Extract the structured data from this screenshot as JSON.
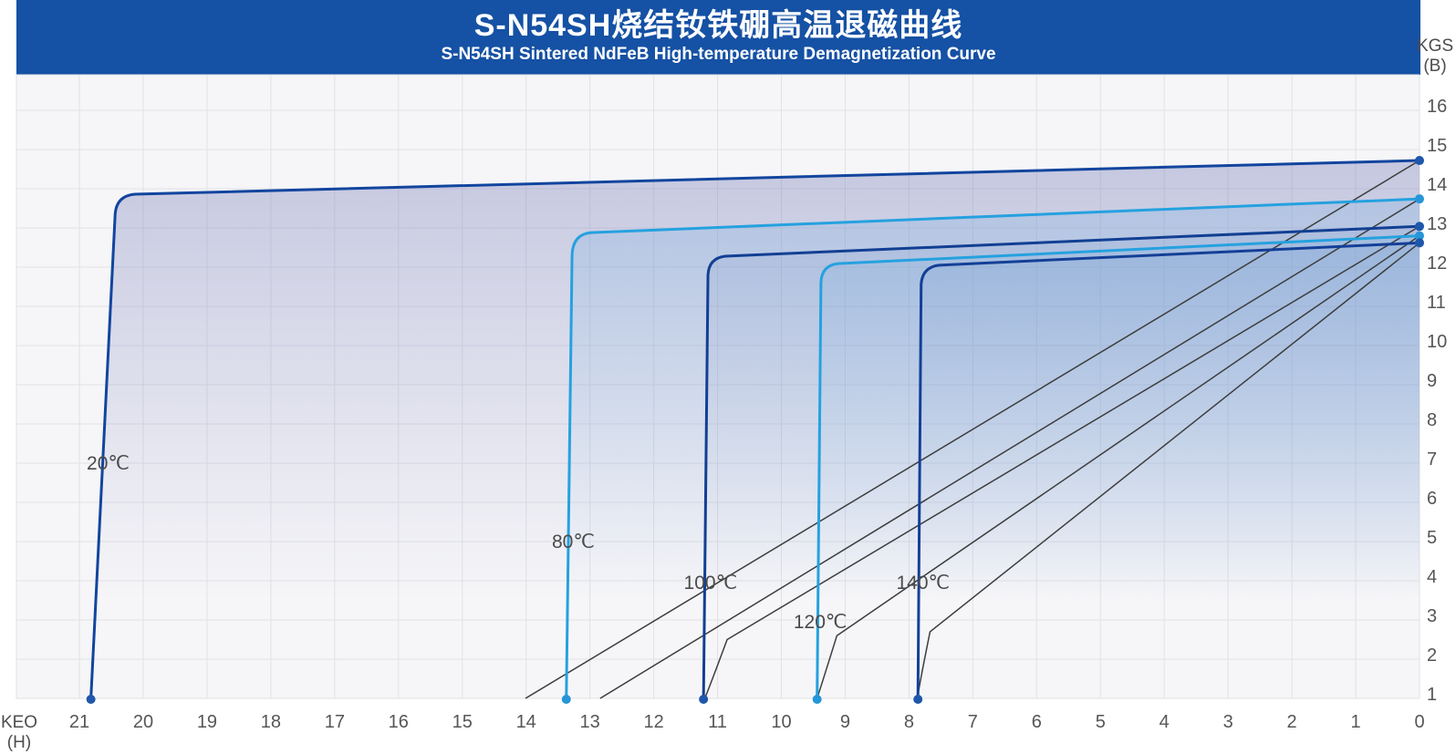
{
  "header": {
    "title_cn": "S-N54SH烧结钕铁硼高温退磁曲线",
    "title_en": "S-N54SH Sintered NdFeB High-temperature Demagnetization Curve",
    "background_color": "#1551a4"
  },
  "chart_data": {
    "type": "line",
    "title": "S-N54SH烧结钕铁硼高温退磁曲线",
    "subtitle": "S-N54SH Sintered NdFeB High-temperature Demagnetization Curve",
    "grid": true,
    "legend_position": "none",
    "x_axis": {
      "unit": "KEO",
      "symbol": "(H)",
      "direction": "reversed",
      "range": [
        22,
        0
      ],
      "ticks": [
        21,
        20,
        19,
        18,
        17,
        16,
        15,
        14,
        13,
        12,
        11,
        10,
        9,
        8,
        7,
        6,
        5,
        4,
        3,
        2,
        1,
        0
      ]
    },
    "y_axis": {
      "unit": "KGS",
      "symbol": "(B)",
      "range": [
        1,
        16.9
      ],
      "ticks": [
        16,
        15,
        14,
        13,
        12,
        11,
        10,
        9,
        8,
        7,
        6,
        5,
        4,
        3,
        2,
        1
      ]
    },
    "colors": {
      "grid": "#e2e2e6",
      "plot_bg": "#f6f6f8",
      "normal_line": "#3d3d3d",
      "tick_text": "#565656",
      "label_text": "#4a4a4a"
    },
    "series": [
      {
        "name": "20℃",
        "id": "20c",
        "color": "#12459e",
        "dot_color": "#1e57ab",
        "fill_rgb": "112,118,182",
        "fill_alpha": 0.36,
        "intrinsic": {
          "hcj": 20.82,
          "vtop": [
            20.44,
            13.35
          ],
          "ctrl": [
            20.42,
            13.82
          ],
          "flat": [
            20.13,
            13.86
          ],
          "br": 14.72
        },
        "normal": {
          "end": [
            14.01,
            1
          ]
        },
        "label": {
          "h": 20.55,
          "b": 7.0
        }
      },
      {
        "name": "80℃",
        "id": "80c",
        "color": "#25a1df",
        "dot_color": "#2596d8",
        "fill_rgb": "105,172,226",
        "fill_alpha": 0.24,
        "intrinsic": {
          "hcj": 13.37,
          "vtop": [
            13.28,
            12.3
          ],
          "ctrl": [
            13.27,
            12.84
          ],
          "flat": [
            12.98,
            12.88
          ],
          "br": 13.74
        },
        "normal": {
          "end": [
            12.84,
            1
          ]
        },
        "label": {
          "h": 13.26,
          "b": 5.0
        }
      },
      {
        "name": "100℃",
        "id": "100c",
        "color": "#123f93",
        "dot_color": "#1e57ab",
        "fill_rgb": "100,125,185",
        "fill_alpha": 0.12,
        "intrinsic": {
          "hcj": 11.22,
          "vtop": [
            11.15,
            11.79
          ],
          "ctrl": [
            11.14,
            12.23
          ],
          "flat": [
            10.88,
            12.28
          ],
          "br": 13.04
        },
        "normal": {
          "bend": [
            10.85,
            2.5
          ],
          "ctrl": [
            11.1,
            1.4
          ],
          "end": [
            11.2,
            1
          ]
        },
        "label": {
          "h": 11.11,
          "b": 3.95
        }
      },
      {
        "name": "120℃",
        "id": "120c",
        "color": "#25a1df",
        "dot_color": "#2596d8",
        "fill_rgb": "105,172,226",
        "fill_alpha": 0.16,
        "intrinsic": {
          "hcj": 9.44,
          "vtop": [
            9.38,
            11.6
          ],
          "ctrl": [
            9.37,
            12.05
          ],
          "flat": [
            9.11,
            12.09
          ],
          "br": 12.8
        },
        "normal": {
          "bend": [
            9.13,
            2.6
          ],
          "ctrl": [
            9.36,
            1.4
          ],
          "end": [
            9.44,
            1
          ]
        },
        "label": {
          "h": 9.39,
          "b": 2.95
        }
      },
      {
        "name": "140℃",
        "id": "140c",
        "color": "#143f97",
        "dot_color": "#1e57ab",
        "fill_rgb": "100,140,200",
        "fill_alpha": 0.12,
        "intrinsic": {
          "hcj": 7.86,
          "vtop": [
            7.81,
            11.56
          ],
          "ctrl": [
            7.79,
            12.0
          ],
          "flat": [
            7.53,
            12.05
          ],
          "br": 12.62
        },
        "normal": {
          "bend": [
            7.67,
            2.7
          ],
          "ctrl": [
            7.82,
            1.5
          ],
          "end": [
            7.87,
            1
          ]
        },
        "label": {
          "h": 7.78,
          "b": 3.95
        }
      }
    ]
  }
}
